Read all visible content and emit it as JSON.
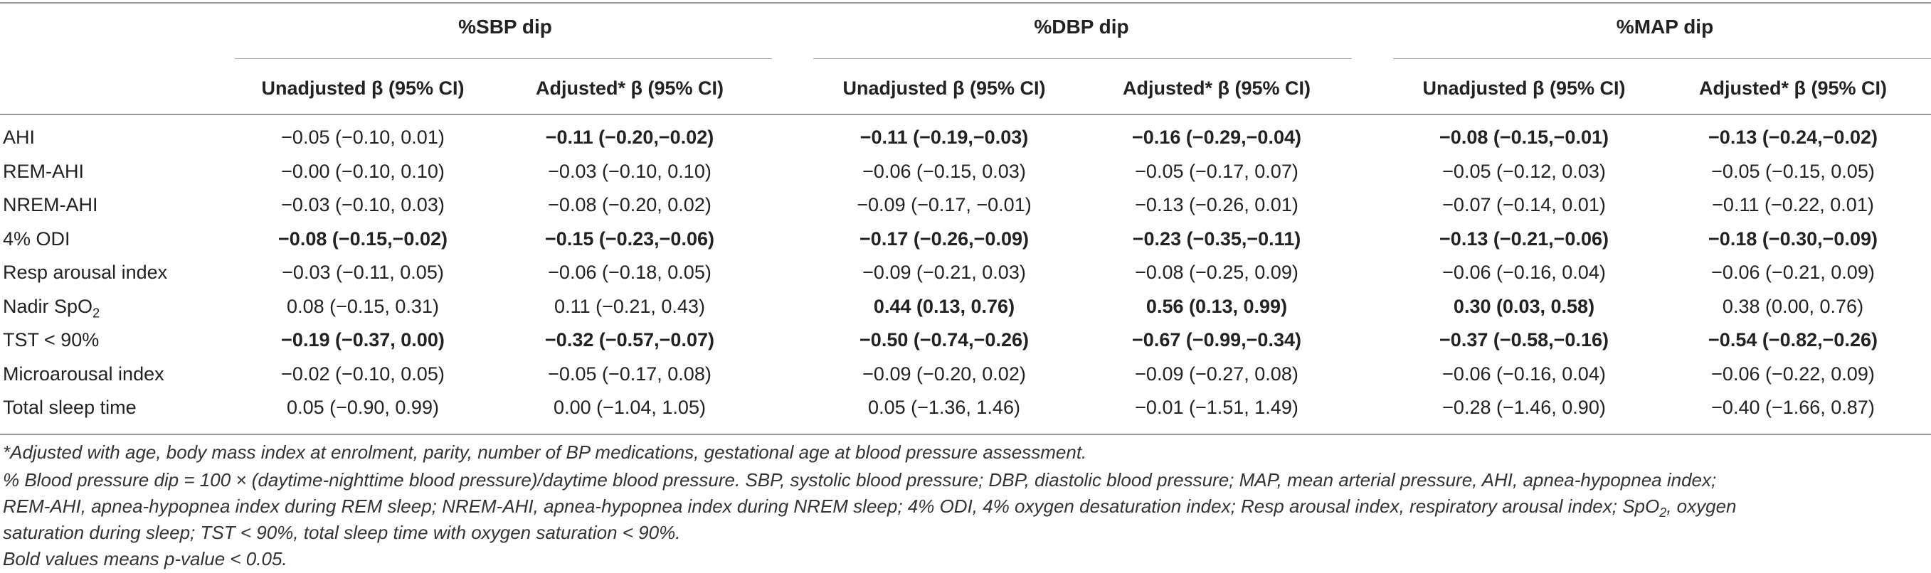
{
  "table": {
    "groups": [
      "%SBP dip",
      "%DBP dip",
      "%MAP dip"
    ],
    "subheaders": [
      "Unadjusted β (95% CI)",
      "Adjusted* β (95% CI)",
      "Unadjusted β (95% CI)",
      "Adjusted* β (95% CI)",
      "Unadjusted β (95% CI)",
      "Adjusted* β (95% CI)"
    ],
    "rows": [
      {
        "label": "AHI",
        "cells": [
          {
            "text": "−0.05 (−0.10, 0.01)",
            "bold": false
          },
          {
            "text": "−0.11 (−0.20,−0.02)",
            "bold": true
          },
          {
            "text": "−0.11 (−0.19,−0.03)",
            "bold": true
          },
          {
            "text": "−0.16 (−0.29,−0.04)",
            "bold": true
          },
          {
            "text": "−0.08 (−0.15,−0.01)",
            "bold": true
          },
          {
            "text": "−0.13 (−0.24,−0.02)",
            "bold": true
          }
        ]
      },
      {
        "label": "REM-AHI",
        "cells": [
          {
            "text": "−0.00 (−0.10, 0.10)",
            "bold": false
          },
          {
            "text": "−0.03 (−0.10, 0.10)",
            "bold": false
          },
          {
            "text": "−0.06 (−0.15, 0.03)",
            "bold": false
          },
          {
            "text": "−0.05 (−0.17, 0.07)",
            "bold": false
          },
          {
            "text": "−0.05 (−0.12, 0.03)",
            "bold": false
          },
          {
            "text": "−0.05 (−0.15, 0.05)",
            "bold": false
          }
        ]
      },
      {
        "label": "NREM-AHI",
        "cells": [
          {
            "text": "−0.03 (−0.10, 0.03)",
            "bold": false
          },
          {
            "text": "−0.08 (−0.20, 0.02)",
            "bold": false
          },
          {
            "text": "−0.09 (−0.17, −0.01)",
            "bold": false
          },
          {
            "text": "−0.13 (−0.26, 0.01)",
            "bold": false
          },
          {
            "text": "−0.07 (−0.14, 0.01)",
            "bold": false
          },
          {
            "text": "−0.11 (−0.22, 0.01)",
            "bold": false
          }
        ]
      },
      {
        "label": "4% ODI",
        "cells": [
          {
            "text": "−0.08 (−0.15,−0.02)",
            "bold": true
          },
          {
            "text": "−0.15 (−0.23,−0.06)",
            "bold": true
          },
          {
            "text": "−0.17 (−0.26,−0.09)",
            "bold": true
          },
          {
            "text": "−0.23 (−0.35,−0.11)",
            "bold": true
          },
          {
            "text": "−0.13 (−0.21,−0.06)",
            "bold": true
          },
          {
            "text": "−0.18 (−0.30,−0.09)",
            "bold": true
          }
        ]
      },
      {
        "label": "Resp arousal index",
        "cells": [
          {
            "text": "−0.03 (−0.11, 0.05)",
            "bold": false
          },
          {
            "text": "−0.06 (−0.18, 0.05)",
            "bold": false
          },
          {
            "text": "−0.09 (−0.21, 0.03)",
            "bold": false
          },
          {
            "text": "−0.08 (−0.25, 0.09)",
            "bold": false
          },
          {
            "text": "−0.06 (−0.16, 0.04)",
            "bold": false
          },
          {
            "text": "−0.06 (−0.21, 0.09)",
            "bold": false
          }
        ]
      },
      {
        "label": "Nadir SpO",
        "label_sub": "2",
        "cells": [
          {
            "text": "0.08 (−0.15, 0.31)",
            "bold": false
          },
          {
            "text": "0.11 (−0.21, 0.43)",
            "bold": false
          },
          {
            "text": "0.44 (0.13, 0.76)",
            "bold": true
          },
          {
            "text": "0.56 (0.13, 0.99)",
            "bold": true
          },
          {
            "text": "0.30 (0.03, 0.58)",
            "bold": true
          },
          {
            "text": "0.38 (0.00, 0.76)",
            "bold": false
          }
        ]
      },
      {
        "label": "TST < 90%",
        "cells": [
          {
            "text": "−0.19 (−0.37, 0.00)",
            "bold": true
          },
          {
            "text": "−0.32 (−0.57,−0.07)",
            "bold": true
          },
          {
            "text": "−0.50 (−0.74,−0.26)",
            "bold": true
          },
          {
            "text": "−0.67 (−0.99,−0.34)",
            "bold": true
          },
          {
            "text": "−0.37 (−0.58,−0.16)",
            "bold": true
          },
          {
            "text": "−0.54 (−0.82,−0.26)",
            "bold": true
          }
        ]
      },
      {
        "label": "Microarousal index",
        "cells": [
          {
            "text": "−0.02 (−0.10, 0.05)",
            "bold": false
          },
          {
            "text": "−0.05 (−0.17, 0.08)",
            "bold": false
          },
          {
            "text": "−0.09 (−0.20, 0.02)",
            "bold": false
          },
          {
            "text": "−0.09 (−0.27, 0.08)",
            "bold": false
          },
          {
            "text": "−0.06 (−0.16, 0.04)",
            "bold": false
          },
          {
            "text": "−0.06 (−0.22, 0.09)",
            "bold": false
          }
        ]
      },
      {
        "label": "Total sleep time",
        "cells": [
          {
            "text": "0.05 (−0.90, 0.99)",
            "bold": false
          },
          {
            "text": "0.00 (−1.04, 1.05)",
            "bold": false
          },
          {
            "text": "0.05 (−1.36, 1.46)",
            "bold": false
          },
          {
            "text": "−0.01 (−1.51, 1.49)",
            "bold": false
          },
          {
            "text": "−0.28 (−1.46, 0.90)",
            "bold": false
          },
          {
            "text": "−0.40 (−1.66, 0.87)",
            "bold": false
          }
        ]
      }
    ]
  },
  "footnotes": {
    "adjusted": "*Adjusted with age, body mass index at enrolment, parity, number of BP medications, gestational age at blood pressure assessment.",
    "definition_line1": "% Blood pressure dip = 100 × (daytime-nighttime blood pressure)/daytime blood pressure. SBP, systolic blood pressure; DBP, diastolic blood pressure; MAP, mean arterial pressure, AHI, apnea-hypopnea index;",
    "definition_line2": "REM-AHI, apnea-hypopnea index during REM sleep; NREM-AHI, apnea-hypopnea index during NREM sleep; 4% ODI, 4% oxygen desaturation index; Resp arousal index, respiratory arousal index; SpO",
    "definition_line2_sub": "2",
    "definition_line2_end": ", oxygen",
    "definition_line3": "saturation during sleep; TST < 90%, total sleep time with oxygen saturation < 90%.",
    "bold_note": "Bold values means p-value < 0.05."
  }
}
